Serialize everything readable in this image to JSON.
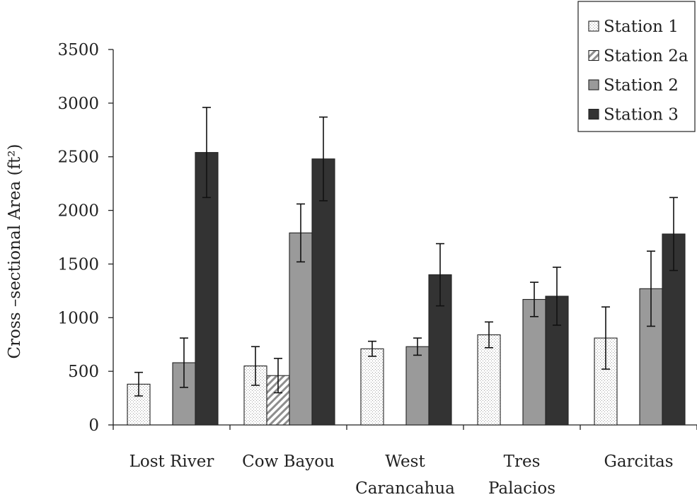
{
  "chart_data": {
    "type": "bar",
    "title": "",
    "xlabel": "",
    "ylabel": "Cross –sectional Area (ft²)",
    "ylim": [
      0,
      3500
    ],
    "yticks": [
      0,
      500,
      1000,
      1500,
      2000,
      2500,
      3000,
      3500
    ],
    "ytick_labels": [
      "0",
      "500",
      "1000",
      "1500",
      "2000",
      "2500",
      "3000",
      "3500"
    ],
    "categories": [
      [
        "Lost River"
      ],
      [
        "Cow Bayou"
      ],
      [
        "West",
        "Carancahua"
      ],
      [
        "Tres",
        "Palacios"
      ],
      [
        "Garcitas"
      ]
    ],
    "grid": false,
    "legend_position": "top-right",
    "series": [
      {
        "name": "Station 1",
        "color": "#ffffff",
        "pattern": "dots",
        "values": [
          380,
          550,
          710,
          840,
          810
        ],
        "errors": [
          110,
          180,
          70,
          120,
          290
        ]
      },
      {
        "name": "Station 2a",
        "color": "#ffffff",
        "pattern": "diagonal-hatch",
        "values": [
          null,
          460,
          null,
          null,
          null
        ],
        "errors": [
          null,
          160,
          null,
          null,
          null
        ]
      },
      {
        "name": "Station 2",
        "color": "#9a9a9a",
        "pattern": "solid",
        "values": [
          580,
          1790,
          730,
          1170,
          1270
        ],
        "errors": [
          230,
          270,
          80,
          160,
          350
        ]
      },
      {
        "name": "Station 3",
        "color": "#333333",
        "pattern": "solid",
        "values": [
          2540,
          2480,
          1400,
          1200,
          1780
        ],
        "errors": [
          420,
          390,
          290,
          270,
          340
        ]
      }
    ]
  }
}
